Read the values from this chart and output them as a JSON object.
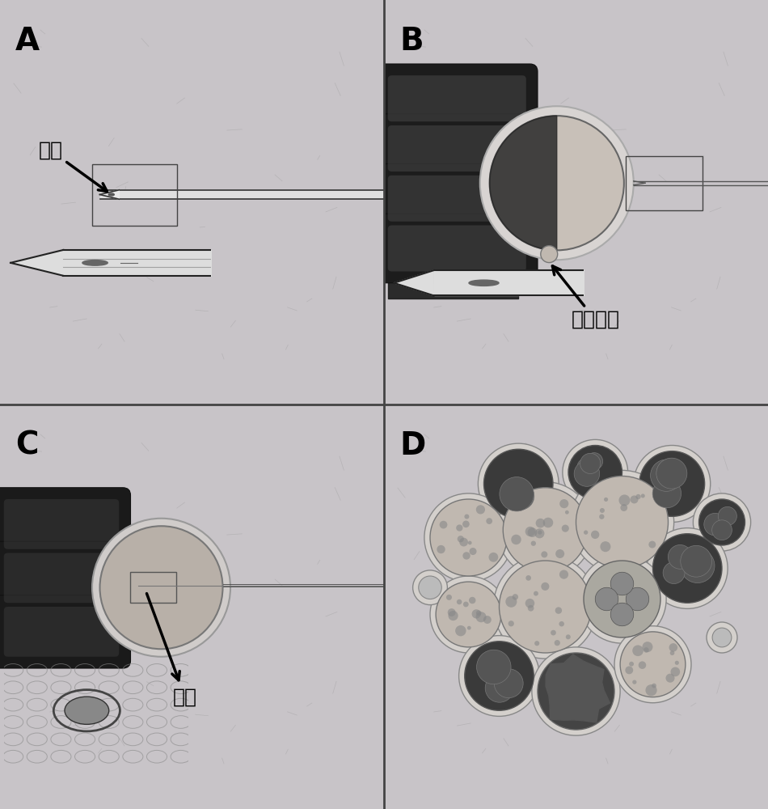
{
  "bg_color": "#c8c4c8",
  "panel_bg": "#c8c4c8",
  "border_color": "#1a1a1a",
  "labels": [
    "A",
    "B",
    "C",
    "D"
  ],
  "label_fontsize": 28,
  "chinese_fontsize": 18,
  "annotation_A": "精子",
  "annotation_B": "第一极体",
  "annotation_C": "精子",
  "figsize": [
    9.5,
    10.0
  ],
  "dpi": 100
}
